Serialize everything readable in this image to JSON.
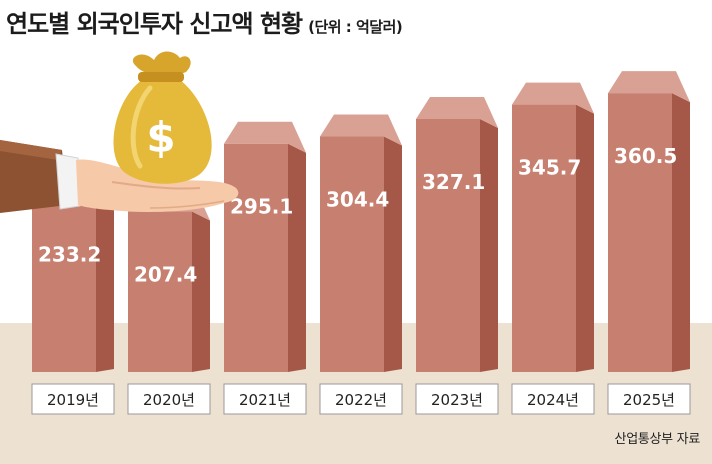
{
  "title": "연도별 외국인투자 신고액 현황",
  "unit": "(단위 : 억달러)",
  "source": "산업통상부 자료",
  "colors": {
    "bar_front": "#c77f6f",
    "bar_side": "#a65848",
    "bar_top": "#d9a193",
    "floor": "#ede1d2",
    "label_bg": "#ffffff",
    "label_border": "#999999",
    "value_text": "#ffffff"
  },
  "chart_data": {
    "type": "bar",
    "categories": [
      "2019년",
      "2020년",
      "2021년",
      "2022년",
      "2023년",
      "2024년",
      "2025년"
    ],
    "values": [
      233.2,
      207.4,
      295.1,
      304.4,
      327.1,
      345.7,
      360.5
    ],
    "value_labels": [
      "233.2",
      "207.4",
      "295.1",
      "304.4",
      "327.1",
      "345.7",
      "360.5"
    ],
    "ylim": [
      0,
      400
    ],
    "grid": false,
    "legend": "none"
  },
  "decoration": {
    "illustration": "hand-holding-money-bag-icon",
    "symbol": "$"
  }
}
